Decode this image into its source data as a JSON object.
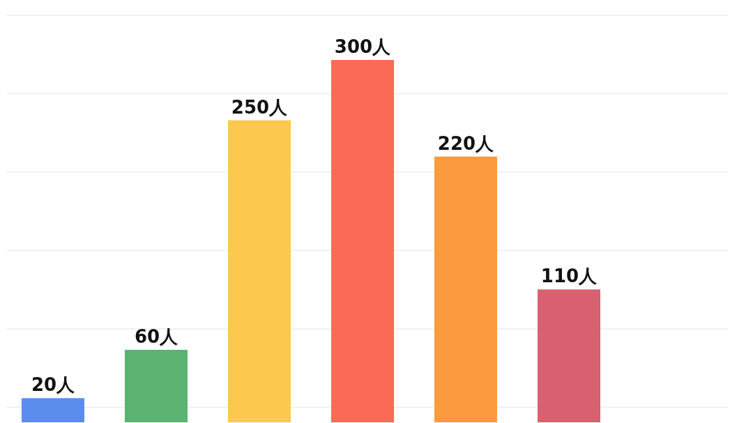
{
  "chart_data": {
    "type": "bar",
    "categories": [
      null,
      null,
      null,
      null,
      null,
      null
    ],
    "values": [
      20,
      60,
      250,
      300,
      220,
      110
    ],
    "colors": [
      "#5b8def",
      "#5bb371",
      "#fcc84d",
      "#fb6a55",
      "#fb9a3e",
      "#d9606e"
    ],
    "value_labels": [
      "20人",
      "60人",
      "250人",
      "300人",
      "220人",
      "110人"
    ],
    "grid": "y"
  }
}
